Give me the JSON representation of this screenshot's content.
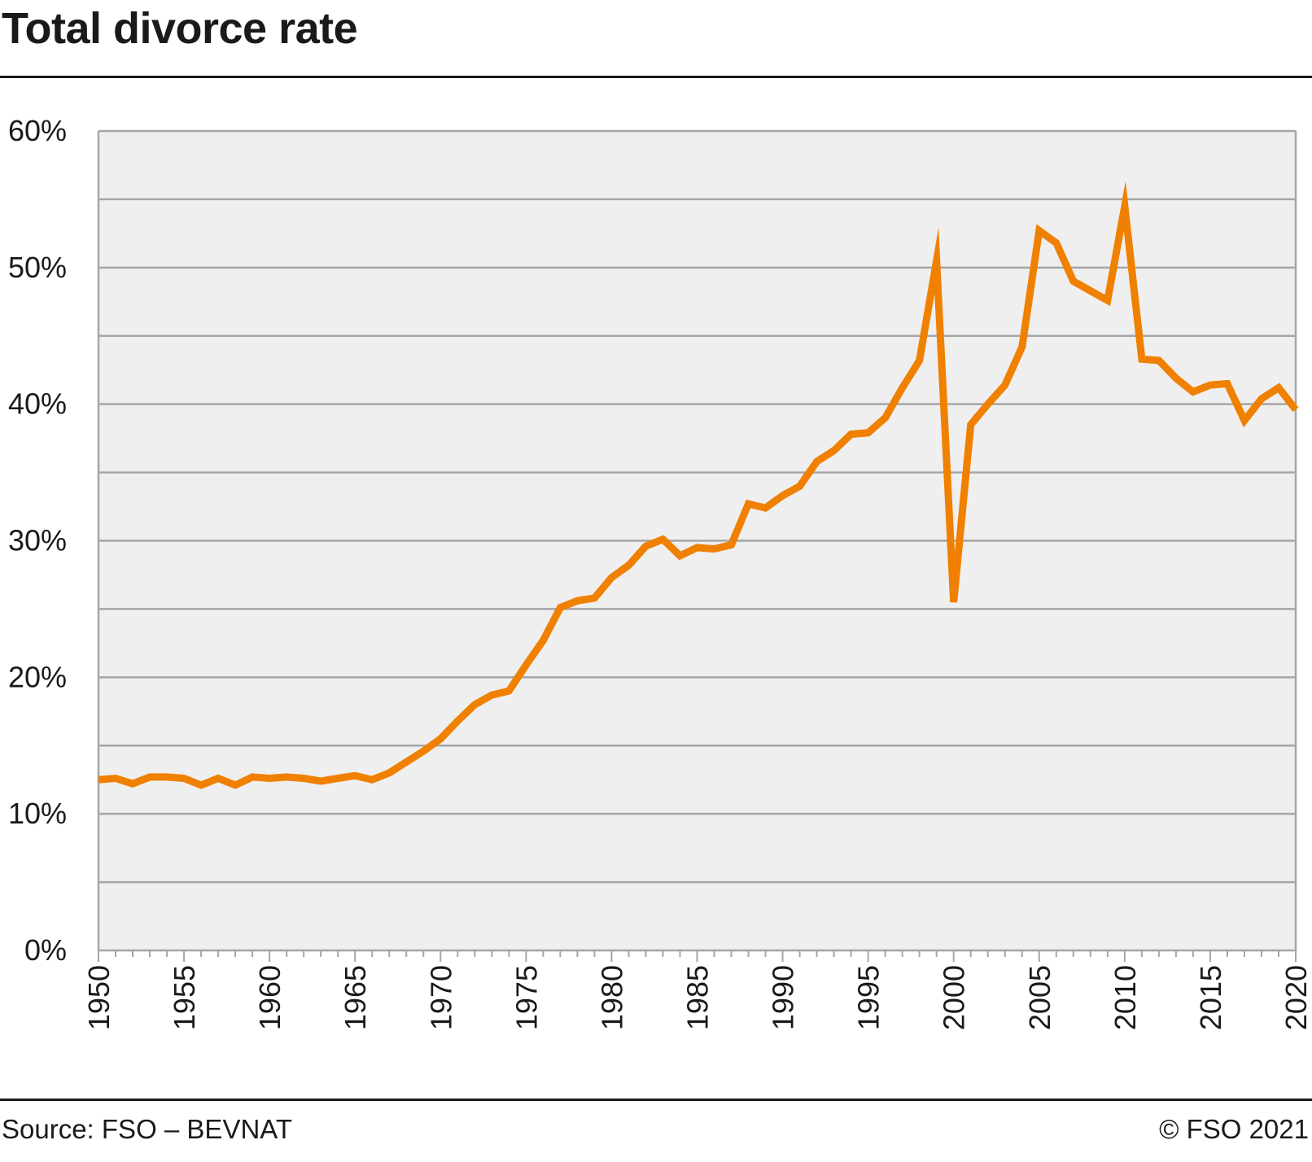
{
  "title": "Total divorce rate",
  "source": "Source: FSO – BEVNAT",
  "copyright": "© FSO 2021",
  "colors": {
    "line": "#f08000",
    "plot_bg": "#efefef",
    "grid": "#a6a6a6",
    "text": "#1a1a1a"
  },
  "chart_data": {
    "type": "line",
    "title": "Total divorce rate",
    "xlabel": "",
    "ylabel": "",
    "xlim": [
      1950,
      2020
    ],
    "ylim": [
      0,
      60
    ],
    "y_ticks": [
      0,
      10,
      20,
      30,
      40,
      50,
      60
    ],
    "y_tick_labels": [
      "0%",
      "10%",
      "20%",
      "30%",
      "40%",
      "50%",
      "60%"
    ],
    "x_tick_labels": [
      "1950",
      "1955",
      "1960",
      "1965",
      "1970",
      "1975",
      "1980",
      "1985",
      "1990",
      "1995",
      "2000",
      "2005",
      "2010",
      "2015",
      "2020"
    ],
    "grid": true,
    "series": [
      {
        "name": "",
        "x": [
          1950,
          1951,
          1952,
          1953,
          1954,
          1955,
          1956,
          1957,
          1958,
          1959,
          1960,
          1961,
          1962,
          1963,
          1964,
          1965,
          1966,
          1967,
          1968,
          1969,
          1970,
          1971,
          1972,
          1973,
          1974,
          1975,
          1976,
          1977,
          1978,
          1979,
          1980,
          1981,
          1982,
          1983,
          1984,
          1985,
          1986,
          1987,
          1988,
          1989,
          1990,
          1991,
          1992,
          1993,
          1994,
          1995,
          1996,
          1997,
          1998,
          1999,
          2000,
          2001,
          2002,
          2003,
          2004,
          2005,
          2006,
          2007,
          2008,
          2009,
          2010,
          2011,
          2012,
          2013,
          2014,
          2015,
          2016,
          2017,
          2018,
          2019,
          2020
        ],
        "values": [
          12.5,
          12.6,
          12.2,
          12.7,
          12.7,
          12.6,
          12.1,
          12.6,
          12.1,
          12.7,
          12.6,
          12.7,
          12.6,
          12.4,
          12.6,
          12.8,
          12.5,
          13.0,
          13.8,
          14.6,
          15.5,
          16.8,
          18.0,
          18.7,
          19.0,
          20.9,
          22.7,
          25.1,
          25.6,
          25.8,
          27.3,
          28.2,
          29.6,
          30.1,
          28.9,
          29.5,
          29.4,
          29.7,
          32.7,
          32.4,
          33.3,
          34.0,
          35.8,
          36.6,
          37.8,
          37.9,
          39.0,
          41.2,
          43.2,
          50.5,
          25.5,
          38.5,
          40.0,
          41.4,
          44.2,
          52.7,
          51.8,
          49.0,
          48.3,
          47.6,
          54.5,
          43.3,
          43.2,
          41.9,
          40.9,
          41.4,
          41.5,
          38.8,
          40.4,
          41.2,
          39.6
        ]
      }
    ]
  }
}
